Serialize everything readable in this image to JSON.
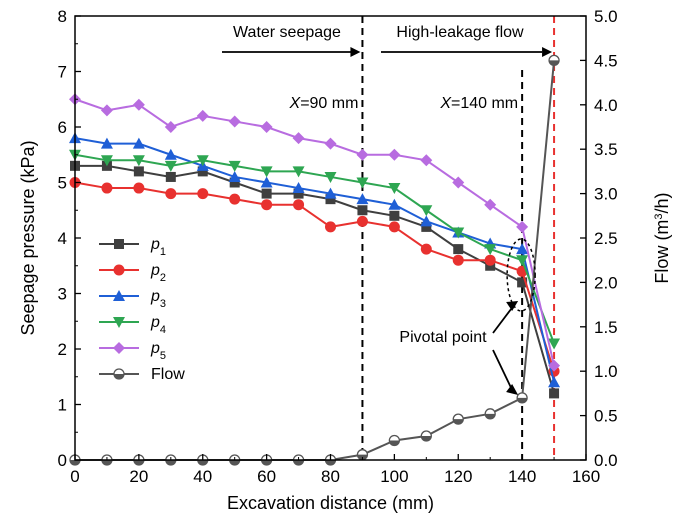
{
  "chart_data": {
    "type": "line",
    "xlabel": "Excavation distance (mm)",
    "ylabel_left": "Seepage pressure (kPa)",
    "ylabel_right": {
      "prefix": "Flow (m",
      "sup": "3",
      "suffix": "/h)"
    },
    "xlim": [
      0,
      160
    ],
    "ylim_left": [
      0,
      8
    ],
    "ylim_right": [
      0,
      5.0
    ],
    "x_ticks": [
      0,
      20,
      40,
      60,
      80,
      100,
      120,
      140,
      160
    ],
    "y_ticks_left": [
      0,
      1,
      2,
      3,
      4,
      5,
      6,
      7,
      8
    ],
    "y_ticks_right": [
      "0.0",
      "0.5",
      "1.0",
      "1.5",
      "2.0",
      "2.5",
      "3.0",
      "3.5",
      "4.0",
      "4.5",
      "5.0"
    ],
    "grid": false,
    "legend_position": "lower-left",
    "series": [
      {
        "name": "p",
        "sub": "1",
        "axis": "left",
        "color": "#3f3f3f",
        "marker": "square",
        "x": [
          0,
          10,
          20,
          30,
          40,
          50,
          60,
          70,
          80,
          90,
          100,
          110,
          120,
          130,
          140,
          150
        ],
        "y": [
          5.3,
          5.3,
          5.2,
          5.1,
          5.2,
          5.0,
          4.8,
          4.8,
          4.7,
          4.5,
          4.4,
          4.2,
          3.8,
          3.5,
          3.2,
          1.2
        ]
      },
      {
        "name": "p",
        "sub": "2",
        "axis": "left",
        "color": "#e8312f",
        "marker": "circle",
        "x": [
          0,
          10,
          20,
          30,
          40,
          50,
          60,
          70,
          80,
          90,
          100,
          110,
          120,
          130,
          140,
          150
        ],
        "y": [
          5.0,
          4.9,
          4.9,
          4.8,
          4.8,
          4.7,
          4.6,
          4.6,
          4.2,
          4.3,
          4.2,
          3.8,
          3.6,
          3.6,
          3.4,
          1.6
        ]
      },
      {
        "name": "p",
        "sub": "3",
        "axis": "left",
        "color": "#1f5fd6",
        "marker": "triangle-up",
        "x": [
          0,
          10,
          20,
          30,
          40,
          50,
          60,
          70,
          80,
          90,
          100,
          110,
          120,
          130,
          140,
          150
        ],
        "y": [
          5.8,
          5.7,
          5.7,
          5.5,
          5.3,
          5.1,
          5.0,
          4.9,
          4.8,
          4.7,
          4.6,
          4.3,
          4.1,
          3.9,
          3.8,
          1.4
        ]
      },
      {
        "name": "p",
        "sub": "4",
        "axis": "left",
        "color": "#2ea652",
        "marker": "triangle-down",
        "x": [
          0,
          10,
          20,
          30,
          40,
          50,
          60,
          70,
          80,
          90,
          100,
          110,
          120,
          130,
          140,
          150
        ],
        "y": [
          5.5,
          5.4,
          5.4,
          5.3,
          5.4,
          5.3,
          5.2,
          5.2,
          5.1,
          5.0,
          4.9,
          4.5,
          4.1,
          3.8,
          3.6,
          2.1
        ]
      },
      {
        "name": "p",
        "sub": "5",
        "axis": "left",
        "color": "#b86ce0",
        "marker": "diamond",
        "x": [
          0,
          10,
          20,
          30,
          40,
          50,
          60,
          70,
          80,
          90,
          100,
          110,
          120,
          130,
          140,
          150
        ],
        "y": [
          6.5,
          6.3,
          6.4,
          6.0,
          6.2,
          6.1,
          6.0,
          5.8,
          5.7,
          5.5,
          5.5,
          5.4,
          5.0,
          4.6,
          4.2,
          1.7
        ]
      },
      {
        "name": "Flow",
        "sub": "",
        "axis": "right",
        "color": "#555555",
        "marker": "half-circle",
        "x": [
          0,
          10,
          20,
          30,
          40,
          50,
          60,
          70,
          80,
          90,
          100,
          110,
          120,
          130,
          140,
          150
        ],
        "y": [
          0.0,
          0.0,
          0.0,
          0.0,
          0.0,
          0.0,
          0.0,
          0.0,
          0.0,
          0.06,
          0.22,
          0.27,
          0.46,
          0.52,
          0.7,
          4.5
        ]
      }
    ],
    "vlines": [
      {
        "x": 90,
        "color": "#000000",
        "label_prefix": "X",
        "label_suffix": "=90 mm"
      },
      {
        "x": 140,
        "color": "#000000",
        "label_prefix": "X",
        "label_suffix": "=140 mm"
      },
      {
        "x": 150,
        "color": "#e8312f"
      }
    ],
    "annotations": {
      "water_seepage": "Water seepage",
      "high_leakage": "High-leakage flow",
      "pivotal_point": "Pivotal point"
    }
  }
}
